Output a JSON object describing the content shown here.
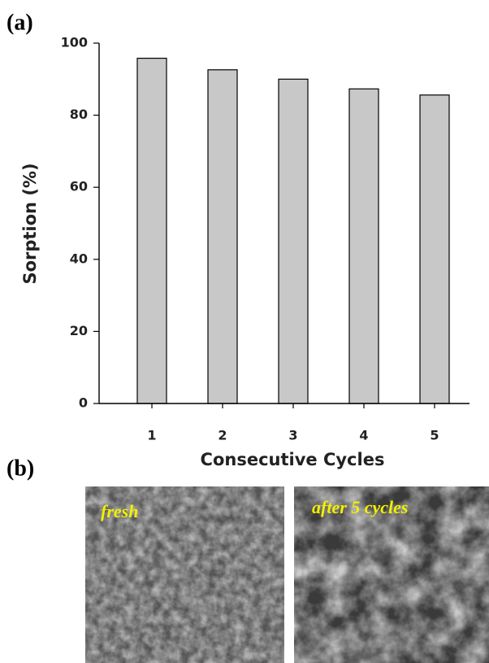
{
  "panel_labels": [
    "(a)",
    "(b)"
  ],
  "chart_data": {
    "type": "bar",
    "x_label": "Consecutive Cycles",
    "y_label": "Sorption (%)",
    "categories": [
      "1",
      "2",
      "3",
      "4",
      "5"
    ],
    "values": [
      95.8,
      92.6,
      90,
      87.3,
      85.6
    ],
    "color": "#c8c8c8",
    "ylim": [
      0,
      100
    ],
    "yticks": [
      0,
      20,
      40,
      60,
      80,
      100
    ],
    "grid": false
  },
  "images": [
    {
      "caption": "fresh"
    },
    {
      "caption": "after 5 cycles"
    }
  ]
}
